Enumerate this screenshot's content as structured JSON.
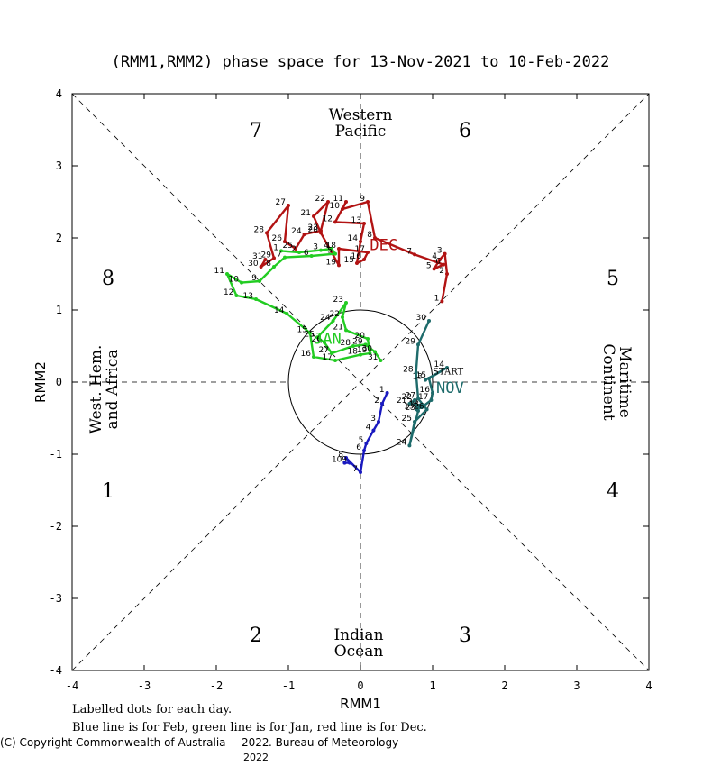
{
  "chart_data": {
    "type": "line",
    "title": "(RMM1,RMM2) phase space for 13-Nov-2021 to 10-Feb-2022",
    "xlabel": "RMM1",
    "ylabel": "RMM2",
    "xlim": [
      -4,
      4
    ],
    "ylim": [
      -4,
      4
    ],
    "xticks": [
      "-4",
      "-3",
      "-2",
      "-1",
      "0",
      "1",
      "2",
      "3",
      "4"
    ],
    "yticks": [
      "-4",
      "-3",
      "-2",
      "-1",
      "0",
      "1",
      "2",
      "3",
      "4"
    ],
    "phases": [
      {
        "label": "1",
        "x": -3.5,
        "y": -1.5
      },
      {
        "label": "2",
        "x": -1.45,
        "y": -3.5
      },
      {
        "label": "3",
        "x": 1.45,
        "y": -3.5
      },
      {
        "label": "4",
        "x": 3.5,
        "y": -1.5
      },
      {
        "label": "5",
        "x": 3.5,
        "y": 1.45
      },
      {
        "label": "6",
        "x": 1.45,
        "y": 3.5
      },
      {
        "label": "7",
        "x": -1.45,
        "y": 3.5
      },
      {
        "label": "8",
        "x": -3.5,
        "y": 1.45
      }
    ],
    "regions": {
      "western_pacific": [
        "Western",
        "Pacific"
      ],
      "indian_ocean": [
        "Indian",
        "Ocean"
      ],
      "west_hem": [
        "West. Hem.",
        "and Africa"
      ],
      "maritime": [
        "Maritime",
        "Continent"
      ]
    },
    "start_label": "START",
    "series": [
      {
        "label": "NOV",
        "color": "#1e6b6b",
        "label_pos": [
          1.05,
          -0.15
        ],
        "points": [
          {
            "d": "13",
            "x": 0.9,
            "y": 0.03
          },
          {
            "d": "14",
            "x": 1.2,
            "y": 0.2
          },
          {
            "d": "15",
            "x": 0.95,
            "y": 0.05
          },
          {
            "d": "16",
            "x": 1.0,
            "y": -0.15
          },
          {
            "d": "17",
            "x": 0.98,
            "y": -0.25
          },
          {
            "d": "18",
            "x": 0.85,
            "y": -0.35
          },
          {
            "d": "19",
            "x": 0.78,
            "y": -0.38
          },
          {
            "d": "20",
            "x": 0.83,
            "y": -0.32
          },
          {
            "d": "21",
            "x": 0.68,
            "y": -0.3
          },
          {
            "d": "22",
            "x": 0.75,
            "y": -0.25
          },
          {
            "d": "23",
            "x": 0.8,
            "y": -0.4
          },
          {
            "d": "24",
            "x": 0.68,
            "y": -0.88
          },
          {
            "d": "25",
            "x": 0.75,
            "y": -0.55
          },
          {
            "d": "26",
            "x": 0.92,
            "y": -0.38
          },
          {
            "d": "27",
            "x": 0.8,
            "y": -0.23
          },
          {
            "d": "28",
            "x": 0.77,
            "y": 0.13
          },
          {
            "d": "29",
            "x": 0.8,
            "y": 0.52
          },
          {
            "d": "30",
            "x": 0.95,
            "y": 0.85
          }
        ]
      },
      {
        "label": "DEC",
        "color": "#b21313",
        "label_pos": [
          0.13,
          1.83
        ],
        "points": [
          {
            "d": "1",
            "x": 1.13,
            "y": 1.12
          },
          {
            "d": "2",
            "x": 1.2,
            "y": 1.5
          },
          {
            "d": "3",
            "x": 1.17,
            "y": 1.78
          },
          {
            "d": "4",
            "x": 1.1,
            "y": 1.7
          },
          {
            "d": "5",
            "x": 1.02,
            "y": 1.57
          },
          {
            "d": "6",
            "x": 1.15,
            "y": 1.63
          },
          {
            "d": "7",
            "x": 0.75,
            "y": 1.77
          },
          {
            "d": "8",
            "x": 0.2,
            "y": 2.0
          },
          {
            "d": "9",
            "x": 0.1,
            "y": 2.5
          },
          {
            "d": "10",
            "x": -0.25,
            "y": 2.4
          },
          {
            "d": "11",
            "x": -0.2,
            "y": 2.5
          },
          {
            "d": "12",
            "x": -0.35,
            "y": 2.22
          },
          {
            "d": "13",
            "x": 0.05,
            "y": 2.2
          },
          {
            "d": "14",
            "x": 0.0,
            "y": 1.95
          },
          {
            "d": "15",
            "x": -0.05,
            "y": 1.65
          },
          {
            "d": "16",
            "x": 0.05,
            "y": 1.7
          },
          {
            "d": "17",
            "x": 0.1,
            "y": 1.8
          },
          {
            "d": "18",
            "x": -0.3,
            "y": 1.85
          },
          {
            "d": "19",
            "x": -0.3,
            "y": 1.62
          },
          {
            "d": "20",
            "x": -0.55,
            "y": 2.07
          },
          {
            "d": "21",
            "x": -0.65,
            "y": 2.3
          },
          {
            "d": "22",
            "x": -0.45,
            "y": 2.5
          },
          {
            "d": "23",
            "x": -0.55,
            "y": 2.1
          },
          {
            "d": "24",
            "x": -0.78,
            "y": 2.05
          },
          {
            "d": "25",
            "x": -0.9,
            "y": 1.85
          },
          {
            "d": "26",
            "x": -1.05,
            "y": 1.95
          },
          {
            "d": "27",
            "x": -1.0,
            "y": 2.45
          },
          {
            "d": "28",
            "x": -1.3,
            "y": 2.07
          },
          {
            "d": "29",
            "x": -1.2,
            "y": 1.72
          },
          {
            "d": "30",
            "x": -1.38,
            "y": 1.6
          },
          {
            "d": "31",
            "x": -1.32,
            "y": 1.7
          }
        ]
      },
      {
        "label": "JAN",
        "color": "#22cc22",
        "label_pos": [
          -0.65,
          0.53
        ],
        "points": [
          {
            "d": "1",
            "x": -1.1,
            "y": 1.82
          },
          {
            "d": "2",
            "x": -0.85,
            "y": 1.8
          },
          {
            "d": "3",
            "x": -0.55,
            "y": 1.83
          },
          {
            "d": "4",
            "x": -0.4,
            "y": 1.85
          },
          {
            "d": "5",
            "x": -0.35,
            "y": 1.78
          },
          {
            "d": "6",
            "x": -0.68,
            "y": 1.75
          },
          {
            "d": "7",
            "x": -1.05,
            "y": 1.73
          },
          {
            "d": "8",
            "x": -1.2,
            "y": 1.6
          },
          {
            "d": "9",
            "x": -1.4,
            "y": 1.4
          },
          {
            "d": "10",
            "x": -1.65,
            "y": 1.38
          },
          {
            "d": "11",
            "x": -1.85,
            "y": 1.5
          },
          {
            "d": "12",
            "x": -1.72,
            "y": 1.2
          },
          {
            "d": "13",
            "x": -1.45,
            "y": 1.15
          },
          {
            "d": "14",
            "x": -1.02,
            "y": 0.95
          },
          {
            "d": "15",
            "x": -0.7,
            "y": 0.68
          },
          {
            "d": "16",
            "x": -0.65,
            "y": 0.35
          },
          {
            "d": "17",
            "x": -0.35,
            "y": 0.3
          },
          {
            "d": "18",
            "x": 0.0,
            "y": 0.38
          },
          {
            "d": "19",
            "x": 0.13,
            "y": 0.4
          },
          {
            "d": "20",
            "x": 0.1,
            "y": 0.6
          },
          {
            "d": "21",
            "x": -0.2,
            "y": 0.72
          },
          {
            "d": "22",
            "x": -0.25,
            "y": 0.9
          },
          {
            "d": "23",
            "x": -0.2,
            "y": 1.1
          },
          {
            "d": "24",
            "x": -0.38,
            "y": 0.85
          },
          {
            "d": "25",
            "x": -0.6,
            "y": 0.62
          },
          {
            "d": "26",
            "x": -0.5,
            "y": 0.55
          },
          {
            "d": "27",
            "x": -0.4,
            "y": 0.4
          },
          {
            "d": "28",
            "x": -0.1,
            "y": 0.5
          },
          {
            "d": "29",
            "x": 0.07,
            "y": 0.52
          },
          {
            "d": "30",
            "x": 0.2,
            "y": 0.42
          },
          {
            "d": "31",
            "x": 0.28,
            "y": 0.3
          }
        ]
      },
      {
        "label": "",
        "color": "#1919c0",
        "label_pos": null,
        "points": [
          {
            "d": "1",
            "x": 0.37,
            "y": -0.15
          },
          {
            "d": "2",
            "x": 0.3,
            "y": -0.3
          },
          {
            "d": "3",
            "x": 0.25,
            "y": -0.55
          },
          {
            "d": "4",
            "x": 0.18,
            "y": -0.67
          },
          {
            "d": "5",
            "x": 0.08,
            "y": -0.85
          },
          {
            "d": "6",
            "x": 0.05,
            "y": -0.95
          },
          {
            "d": "7",
            "x": 0.0,
            "y": -1.25
          },
          {
            "d": "8",
            "x": -0.2,
            "y": -1.05
          },
          {
            "d": "9",
            "x": -0.15,
            "y": -1.12
          },
          {
            "d": "10",
            "x": -0.22,
            "y": -1.12
          }
        ]
      }
    ]
  },
  "notes": {
    "line1": "Labelled dots for each day.",
    "line2": "Blue line is for Feb, green line is for Jan, red line is for Dec.",
    "copyright": "(C) Copyright Commonwealth of Australia",
    "year1": "2022",
    "bureau": ". Bureau of Meteorology",
    "year2": "2022"
  }
}
